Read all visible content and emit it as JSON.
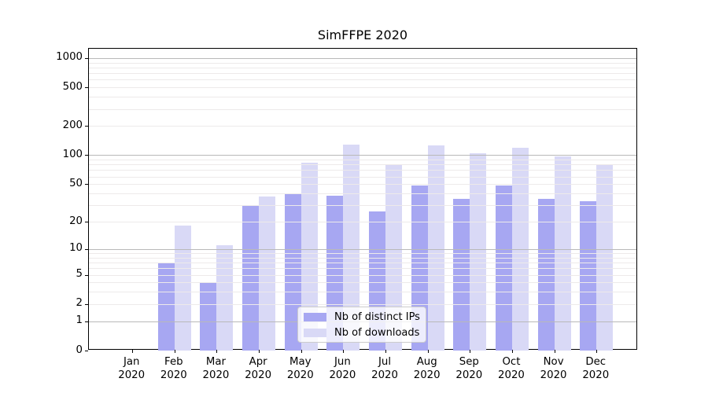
{
  "figure": {
    "title": "SimFFPE 2020"
  },
  "colors": {
    "ips_bar": "#a7a7f2",
    "downloads_bar": "#d9d9f6",
    "grid_major": "#b9b9b9",
    "grid_minor": "#edeaea",
    "axis": "#000000",
    "legend_border": "#cccccc",
    "background": "#ffffff",
    "text": "#000000"
  },
  "chart_data": {
    "type": "bar",
    "title": "SimFFPE 2020",
    "categories": [
      "Jan 2020",
      "Feb 2020",
      "Mar 2020",
      "Apr 2020",
      "May 2020",
      "Jun 2020",
      "Jul 2020",
      "Aug 2020",
      "Sep 2020",
      "Oct 2020",
      "Nov 2020",
      "Dec 2020"
    ],
    "series": [
      {
        "name": "Nb of distinct IPs",
        "color": "#a7a7f2",
        "values": [
          0,
          7,
          4,
          30,
          40,
          38,
          26,
          48,
          35,
          48,
          35,
          33
        ]
      },
      {
        "name": "Nb of downloads",
        "color": "#d9d9f6",
        "values": [
          0,
          18,
          11,
          37,
          84,
          128,
          80,
          126,
          104,
          119,
          97,
          80
        ]
      }
    ],
    "xlabel": "",
    "ylabel": "",
    "y_scale": "log10(value+1)",
    "y_ticks": [
      0,
      1,
      2,
      5,
      10,
      20,
      50,
      100,
      200,
      500,
      1000
    ],
    "y_major_gridlines": [
      1,
      10,
      100,
      1000
    ],
    "y_minor_gridlines": [
      2,
      3,
      4,
      5,
      6,
      7,
      8,
      9,
      20,
      30,
      40,
      50,
      60,
      70,
      80,
      90,
      200,
      300,
      400,
      500,
      600,
      700,
      800,
      900
    ],
    "ylim": [
      0,
      1250
    ],
    "grid": true,
    "legend_position": "lower center inside"
  },
  "legend": {
    "items": [
      {
        "label": "Nb of distinct IPs",
        "color": "#a7a7f2"
      },
      {
        "label": "Nb of downloads",
        "color": "#d9d9f6"
      }
    ]
  }
}
